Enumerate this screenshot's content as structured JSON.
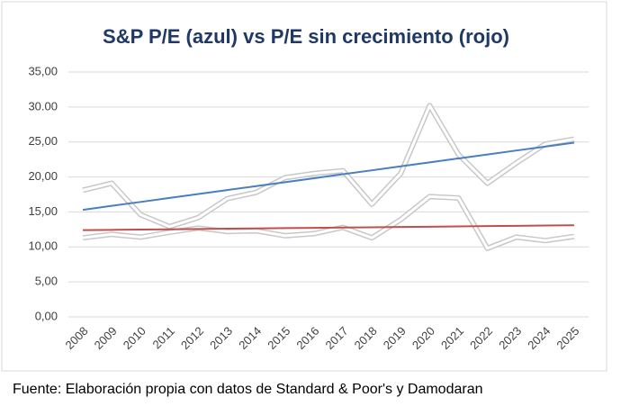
{
  "chart_data": {
    "type": "line",
    "title": "S&P P/E (azul) vs P/E sin crecimiento (rojo)",
    "source": "Fuente: Elaboración propia con datos de Standard & Poor's y Damodaran",
    "categories": [
      "2008",
      "2009",
      "2010",
      "2011",
      "2012",
      "2013",
      "2014",
      "2015",
      "2016",
      "2017",
      "2018",
      "2019",
      "2020",
      "2021",
      "2022",
      "2023",
      "2024",
      "2025"
    ],
    "series": [
      {
        "color": "#ffffff",
        "shadow": "#c8c8c8",
        "values": [
          18.1,
          19.1,
          14.6,
          12.9,
          14.2,
          16.9,
          17.8,
          19.9,
          20.5,
          20.9,
          16.1,
          20.5,
          30.2,
          23.2,
          19.1,
          22.0,
          24.7,
          25.4
        ]
      },
      {
        "color": "#ffffff",
        "shadow": "#c8c8c8",
        "values": [
          11.3,
          11.8,
          11.4,
          12.1,
          12.7,
          12.2,
          12.3,
          11.6,
          11.9,
          12.8,
          11.3,
          13.9,
          17.2,
          17.0,
          9.8,
          11.4,
          10.9,
          11.5
        ]
      },
      {
        "color": "#4a7ebf",
        "values": [
          15.3,
          15.87,
          16.43,
          17.0,
          17.56,
          18.13,
          18.69,
          19.26,
          19.82,
          20.39,
          20.95,
          21.52,
          22.08,
          22.65,
          23.21,
          23.78,
          24.34,
          24.9
        ]
      },
      {
        "color": "#c0504d",
        "values": [
          12.4,
          12.44,
          12.48,
          12.52,
          12.56,
          12.61,
          12.65,
          12.69,
          12.73,
          12.77,
          12.81,
          12.85,
          12.89,
          12.94,
          12.98,
          13.02,
          13.06,
          13.1
        ]
      }
    ],
    "ylim": [
      0,
      35
    ],
    "yticks": [
      {
        "value": 0,
        "label": "0,00"
      },
      {
        "value": 5,
        "label": "5,00"
      },
      {
        "value": 10,
        "label": "10,00"
      },
      {
        "value": 15,
        "label": "15,00"
      },
      {
        "value": 20,
        "label": "20,00"
      },
      {
        "value": 25,
        "label": "25,00"
      },
      {
        "value": 30,
        "label": "30.00"
      },
      {
        "value": 35,
        "label": "35,00"
      }
    ],
    "grid": true
  }
}
